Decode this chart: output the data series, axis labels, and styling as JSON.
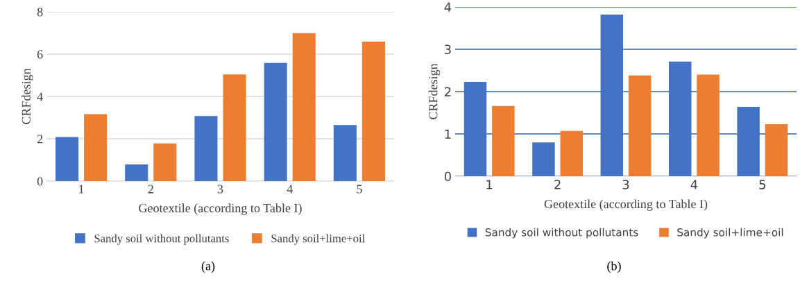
{
  "chart_data": [
    {
      "type": "bar",
      "categories": [
        "1",
        "2",
        "3",
        "4",
        "5"
      ],
      "xlabel": "Geotextile (according to Table I)",
      "ylabel": "CRFdesign",
      "ylim": [
        0,
        8
      ],
      "yticks": [
        0,
        2,
        4,
        6,
        8
      ],
      "grid": "y",
      "legend": "bottom",
      "series": [
        {
          "name": "Sandy soil without pollutants",
          "color": "#4472c4",
          "values": [
            2.08,
            0.79,
            3.07,
            5.58,
            2.65
          ]
        },
        {
          "name": "Sandy soil+lime+oil",
          "color": "#ed7d31",
          "values": [
            3.16,
            1.78,
            5.04,
            6.99,
            6.59
          ]
        }
      ],
      "annotations": [
        "(a)"
      ]
    },
    {
      "type": "bar",
      "categories": [
        "1",
        "2",
        "3",
        "4",
        "5"
      ],
      "xlabel": "Geotextile (according to Table I)",
      "ylabel": "CRFdesign",
      "ylim": [
        0,
        4
      ],
      "yticks": [
        0,
        1,
        2,
        3,
        4
      ],
      "grid": "y",
      "legend": "bottom",
      "series": [
        {
          "name": "Sandy soil without pollutants",
          "color": "#4472c4",
          "values": [
            2.23,
            0.8,
            3.82,
            2.71,
            1.64
          ]
        },
        {
          "name": "Sandy soil+lime+oil",
          "color": "#ed7d31",
          "values": [
            1.66,
            1.07,
            2.38,
            2.4,
            1.23
          ]
        }
      ],
      "annotations": [
        "(b)"
      ]
    }
  ]
}
